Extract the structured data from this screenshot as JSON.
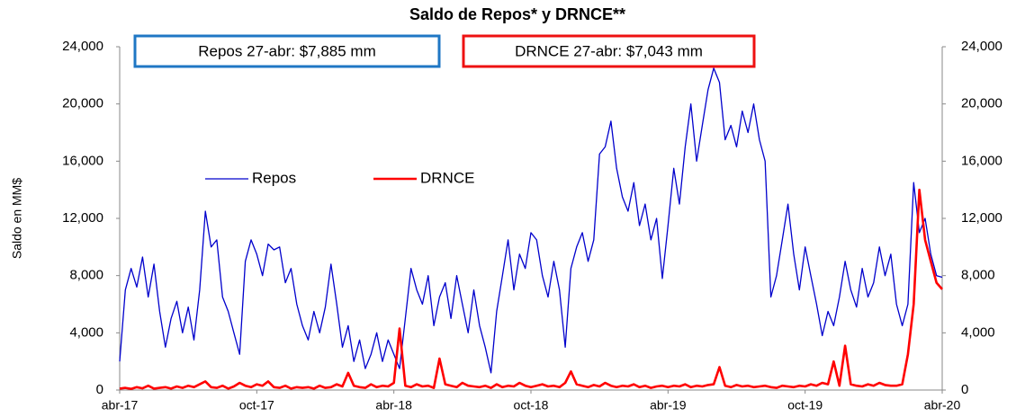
{
  "chart_data": {
    "type": "line",
    "title": "Saldo de Repos* y DRNCE**",
    "y_label": "Saldo en MM$",
    "annotations": [
      "Repos 27-abr: $7,885 mm",
      "DRNCE 27-abr: $7,043 mm"
    ],
    "annotation_colors": [
      "#1f77c4",
      "#ee1111"
    ],
    "legend": "inside-top-left",
    "grid": false,
    "categories": [
      "abr-17",
      null,
      null,
      null,
      null,
      null,
      null,
      null,
      null,
      null,
      null,
      null,
      null,
      null,
      null,
      null,
      null,
      null,
      null,
      null,
      null,
      null,
      null,
      null,
      "oct-17",
      null,
      null,
      null,
      null,
      null,
      null,
      null,
      null,
      null,
      null,
      null,
      null,
      null,
      null,
      null,
      null,
      null,
      null,
      null,
      null,
      null,
      null,
      null,
      "abr-18",
      null,
      null,
      null,
      null,
      null,
      null,
      null,
      null,
      null,
      null,
      null,
      null,
      null,
      null,
      null,
      null,
      null,
      null,
      null,
      null,
      null,
      null,
      null,
      "oct-18",
      null,
      null,
      null,
      null,
      null,
      null,
      null,
      null,
      null,
      null,
      null,
      null,
      null,
      null,
      null,
      null,
      null,
      null,
      null,
      null,
      null,
      null,
      null,
      "abr-19",
      null,
      null,
      null,
      null,
      null,
      null,
      null,
      null,
      null,
      null,
      null,
      null,
      null,
      null,
      null,
      null,
      null,
      null,
      null,
      null,
      null,
      null,
      null,
      "oct-19",
      null,
      null,
      null,
      null,
      null,
      null,
      null,
      null,
      null,
      null,
      null,
      null,
      null,
      null,
      null,
      null,
      null,
      null,
      null,
      null,
      null,
      null,
      null,
      "abr-20"
    ],
    "series": [
      {
        "name": "Repos",
        "color": "#0000cc",
        "values": [
          2000,
          7000,
          8500,
          7200,
          9300,
          6500,
          8800,
          5500,
          3000,
          5000,
          6200,
          4000,
          5800,
          3500,
          7000,
          12500,
          10000,
          10500,
          6500,
          5500,
          4000,
          2500,
          9000,
          10500,
          9500,
          8000,
          10200,
          9800,
          10000,
          7500,
          8500,
          6000,
          4500,
          3500,
          5500,
          4000,
          5800,
          8800,
          6000,
          3000,
          4500,
          2000,
          3500,
          1500,
          2500,
          4000,
          2000,
          3500,
          2500,
          1500,
          5000,
          8500,
          7000,
          6000,
          8000,
          4500,
          6500,
          7500,
          5000,
          8000,
          6000,
          4000,
          7000,
          4500,
          3000,
          1200,
          5500,
          8000,
          10500,
          7000,
          9500,
          8500,
          11000,
          10500,
          8000,
          6500,
          9000,
          7000,
          3000,
          8500,
          10000,
          11000,
          9000,
          10500,
          16500,
          17000,
          18800,
          15500,
          13500,
          12500,
          14500,
          11500,
          13000,
          10500,
          12000,
          7800,
          11500,
          15500,
          13000,
          17000,
          20000,
          16000,
          18500,
          21000,
          22500,
          21500,
          17500,
          18500,
          17000,
          19500,
          18000,
          20000,
          17500,
          16000,
          6500,
          8000,
          10500,
          13000,
          9500,
          7000,
          10000,
          8000,
          6000,
          3800,
          5500,
          4500,
          6500,
          9000,
          7000,
          5800,
          8500,
          6500,
          7500,
          10000,
          8000,
          9500,
          6000,
          4500,
          6000,
          14500,
          11000,
          12000,
          9500,
          8000,
          7885
        ]
      },
      {
        "name": "DRNCE",
        "color": "#ff0000",
        "values": [
          100,
          150,
          80,
          200,
          120,
          300,
          100,
          150,
          200,
          100,
          250,
          150,
          300,
          200,
          400,
          600,
          200,
          150,
          300,
          100,
          250,
          500,
          300,
          200,
          400,
          300,
          600,
          200,
          150,
          300,
          100,
          200,
          150,
          200,
          100,
          300,
          150,
          200,
          400,
          250,
          1200,
          300,
          200,
          150,
          400,
          200,
          300,
          250,
          500,
          4300,
          300,
          200,
          400,
          250,
          300,
          150,
          2200,
          400,
          300,
          200,
          500,
          300,
          250,
          200,
          300,
          150,
          400,
          200,
          300,
          250,
          500,
          300,
          200,
          300,
          400,
          250,
          300,
          200,
          500,
          1300,
          400,
          300,
          200,
          350,
          250,
          500,
          300,
          200,
          300,
          250,
          400,
          200,
          300,
          150,
          250,
          300,
          200,
          300,
          250,
          400,
          200,
          300,
          250,
          350,
          400,
          1600,
          300,
          200,
          350,
          250,
          300,
          200,
          250,
          300,
          200,
          150,
          300,
          250,
          200,
          300,
          250,
          400,
          300,
          500,
          400,
          2000,
          300,
          3100,
          400,
          300,
          250,
          400,
          300,
          500,
          350,
          300,
          300,
          400,
          2500,
          6000,
          14000,
          10500,
          9000,
          7500,
          7043
        ]
      }
    ],
    "ylim": [
      0,
      24000
    ],
    "yticks": [
      0,
      {
        "value": 4000,
        "label": "4,000"
      },
      {
        "value": 8000,
        "label": "8,000"
      },
      {
        "value": 12000,
        "label": "12,000"
      },
      {
        "value": 16000,
        "label": "16,000"
      },
      {
        "value": 20000,
        "label": "20,000"
      },
      {
        "value": 24000,
        "label": "24,000"
      }
    ],
    "y2lim": [
      0,
      24000
    ],
    "y2ticks": [
      0,
      {
        "value": 4000,
        "label": "4,000"
      },
      {
        "value": 8000,
        "label": "8,000"
      },
      {
        "value": 12000,
        "label": "12,000"
      },
      {
        "value": 16000,
        "label": "16,000"
      },
      {
        "value": 20000,
        "label": "20,000"
      },
      {
        "value": 24000,
        "label": "24,000"
      }
    ]
  }
}
